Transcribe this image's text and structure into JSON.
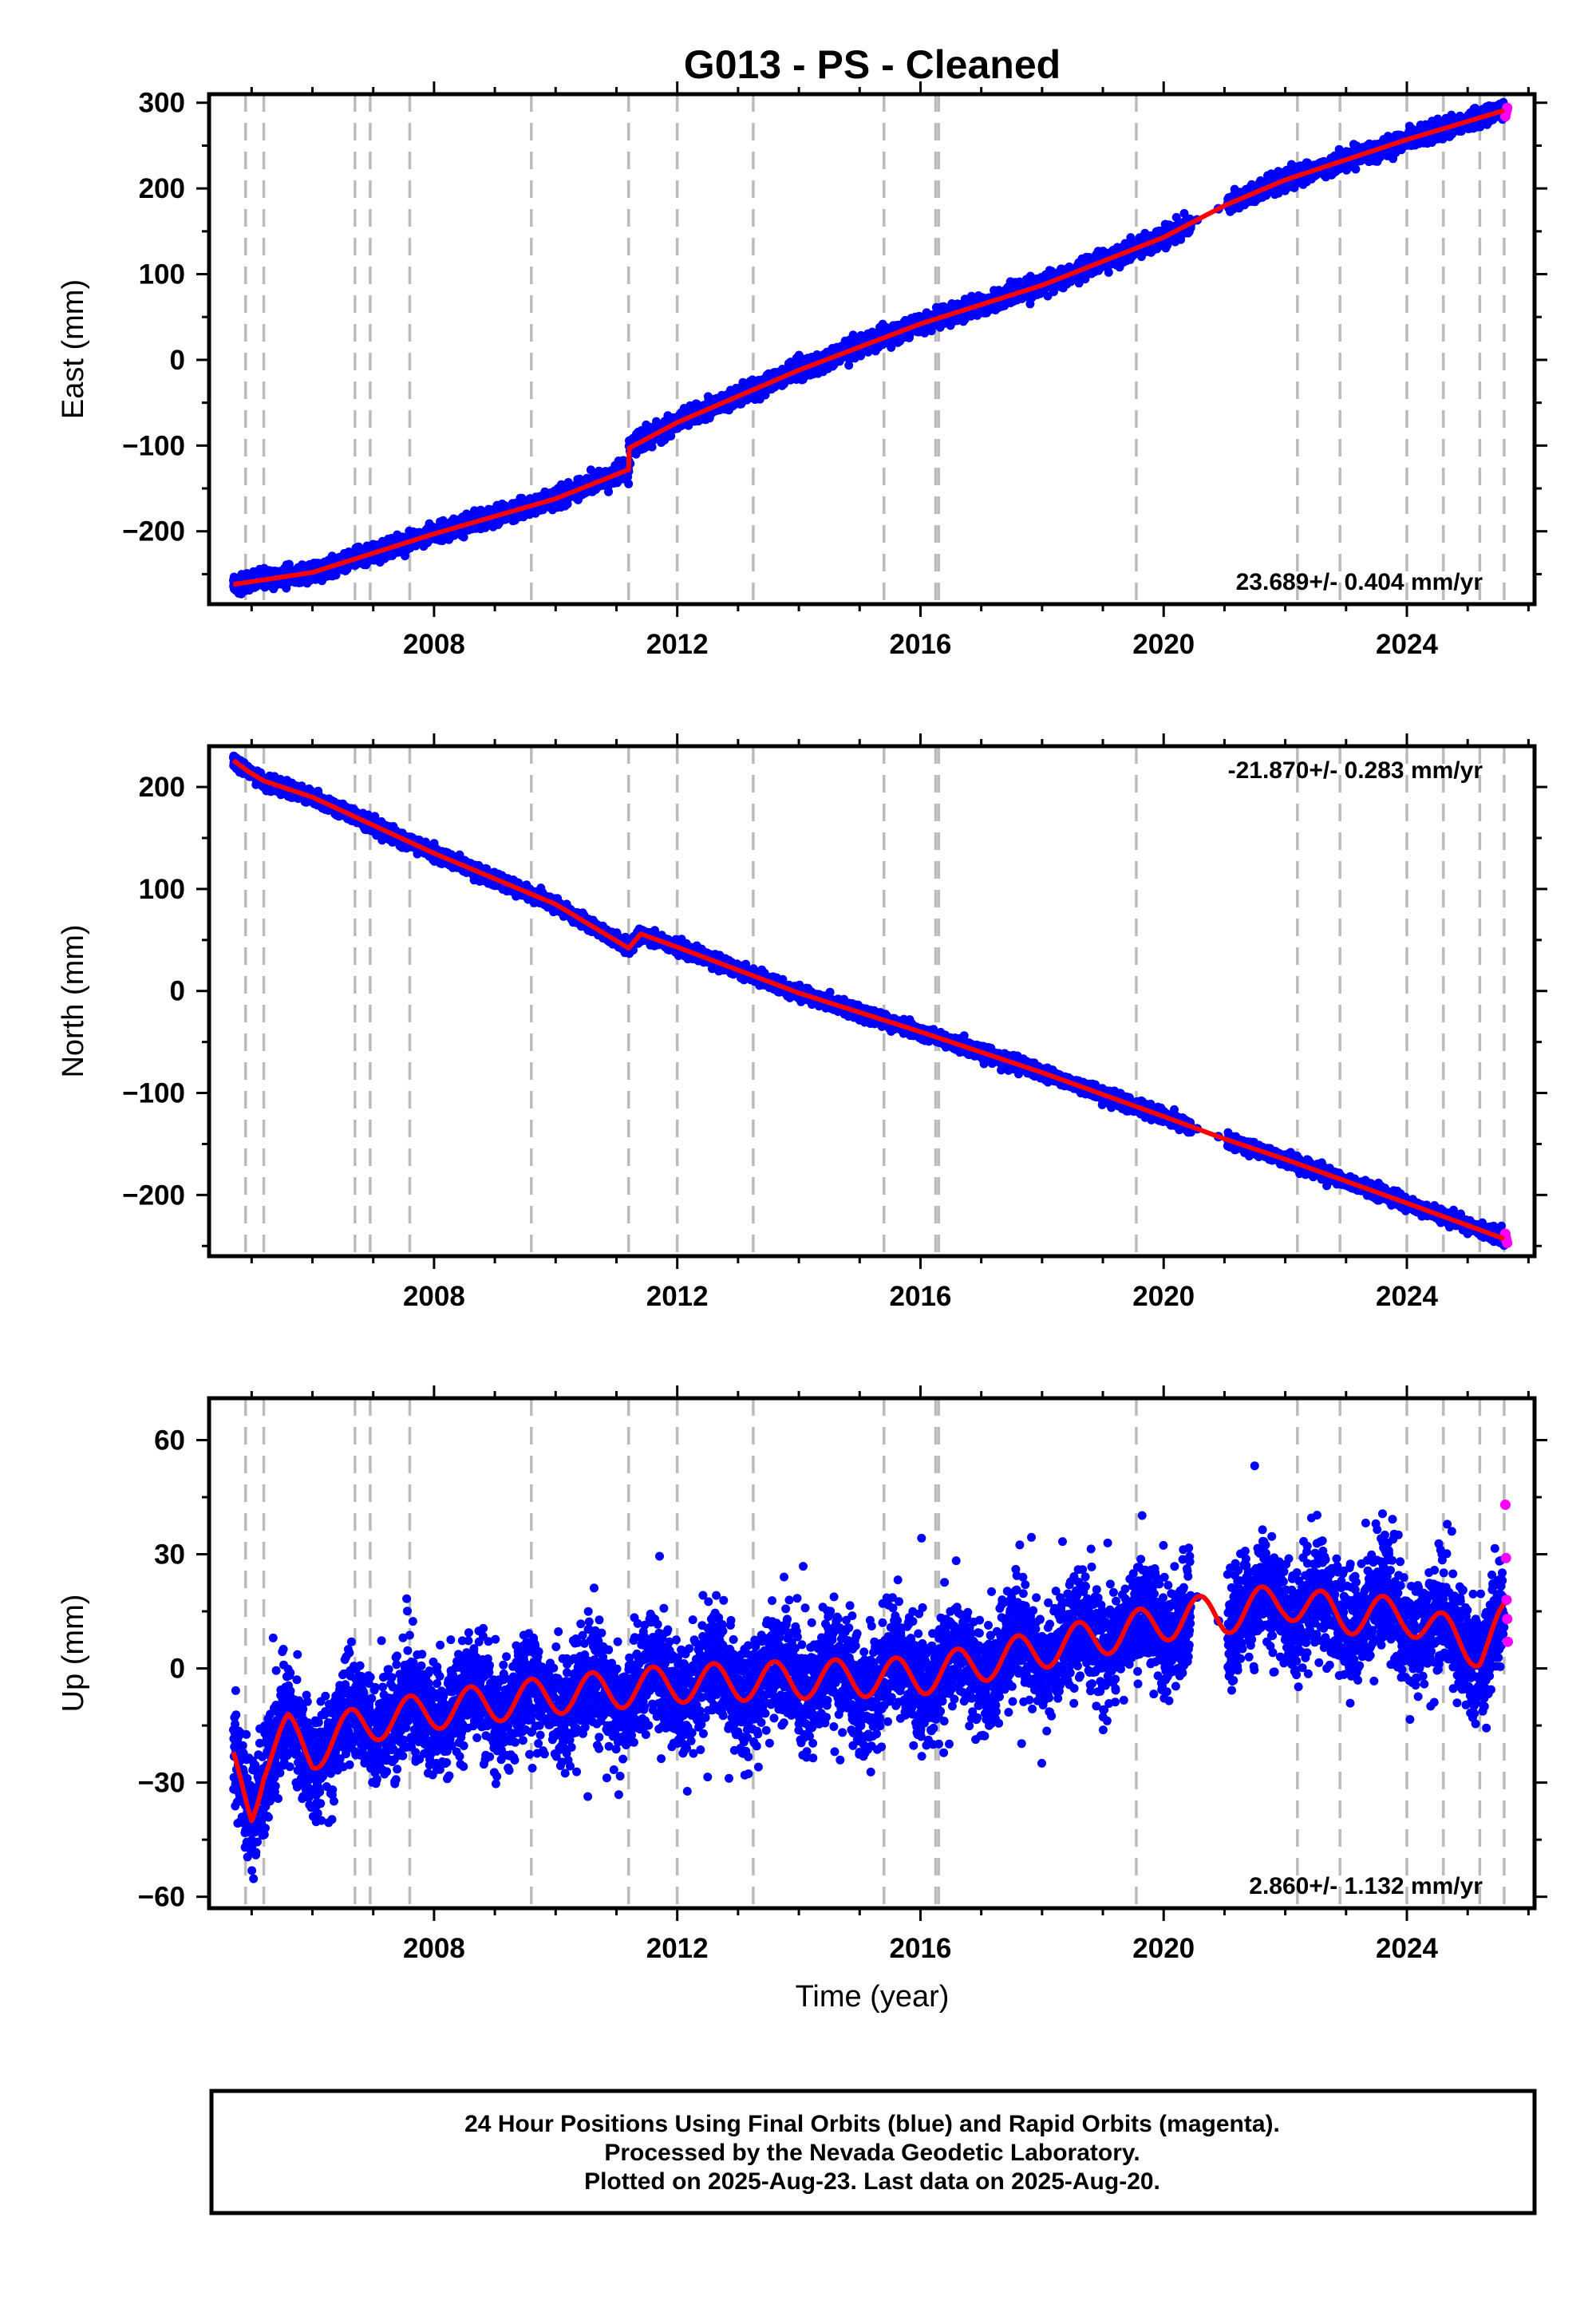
{
  "title": "G013  - PS - Cleaned",
  "xlabel": "Time (year)",
  "footer": {
    "line1": "24 Hour Positions Using Final Orbits (blue) and Rapid Orbits (magenta).",
    "line2": "Processed by the Nevada Geodetic Laboratory.",
    "line3": "Plotted on 2025-Aug-23. Last data on 2025-Aug-20."
  },
  "colors": {
    "final_orbits": "#0000ff",
    "rapid_orbits": "#ff00ff",
    "model_fit": "#ff0000",
    "event_lines": "#bbbbbb"
  },
  "chart_data": [
    {
      "type": "scatter",
      "panel": "east",
      "ylabel": "East (mm)",
      "xlim": [
        2004.3,
        2026.1
      ],
      "ylim": [
        -285,
        310
      ],
      "x_ticks": [
        2008,
        2012,
        2016,
        2020,
        2024
      ],
      "y_ticks": [
        -200,
        -100,
        0,
        100,
        200,
        300
      ],
      "rate_label": "23.689+/- 0.404 mm/yr",
      "rate_position": "bottom-right",
      "event_lines": [
        2004.9,
        2005.2,
        2006.7,
        2006.95,
        2007.6,
        2009.6,
        2011.2,
        2012.0,
        2013.25,
        2015.4,
        2016.25,
        2016.3,
        2019.55,
        2022.2,
        2022.9,
        2024.0,
        2024.6,
        2025.2,
        2025.6
      ],
      "trend_line": {
        "x": [
          2004.7,
          2006,
          2008,
          2010,
          2011.2,
          2011.21,
          2012,
          2014,
          2016,
          2018,
          2020,
          2021,
          2022,
          2024,
          2025.6
        ],
        "y": [
          -262,
          -248,
          -203,
          -162,
          -128,
          -103,
          -73,
          -12,
          42,
          87,
          143,
          180,
          210,
          257,
          291
        ]
      },
      "scatter_noise_mm": 5,
      "data_gap": [
        2020.45,
        2021.05
      ],
      "rapid_orbit_points": {
        "x": [
          2025.62,
          2025.63,
          2025.64,
          2025.65
        ],
        "y": [
          284,
          288,
          291,
          294
        ]
      }
    },
    {
      "type": "scatter",
      "panel": "north",
      "ylabel": "North (mm)",
      "xlim": [
        2004.3,
        2026.1
      ],
      "ylim": [
        -260,
        240
      ],
      "x_ticks": [
        2008,
        2012,
        2016,
        2020,
        2024
      ],
      "y_ticks": [
        -200,
        -100,
        0,
        100,
        200
      ],
      "rate_label": "-21.870+/- 0.283 mm/yr",
      "rate_position": "top-right",
      "event_lines": [
        2004.9,
        2005.2,
        2006.7,
        2006.95,
        2007.6,
        2009.6,
        2011.2,
        2012.0,
        2013.25,
        2015.4,
        2016.25,
        2016.3,
        2019.55,
        2022.2,
        2022.9,
        2024.0,
        2024.6,
        2025.2,
        2025.6
      ],
      "trend_line": {
        "x": [
          2004.7,
          2004.95,
          2005.2,
          2006,
          2008,
          2010,
          2011.2,
          2011.4,
          2012,
          2014,
          2016,
          2018,
          2020,
          2021,
          2022,
          2024,
          2025.6
        ],
        "y": [
          226,
          215,
          206,
          190,
          135,
          85,
          42,
          56,
          43,
          -2,
          -40,
          -80,
          -123,
          -145,
          -165,
          -208,
          -243
        ]
      },
      "scatter_noise_mm": 3,
      "data_gap": [
        2020.45,
        2021.05
      ],
      "rapid_orbit_points": {
        "x": [
          2025.62,
          2025.63,
          2025.64,
          2025.65
        ],
        "y": [
          -238,
          -242,
          -245,
          -247
        ]
      }
    },
    {
      "type": "scatter",
      "panel": "up",
      "ylabel": "Up (mm)",
      "xlim": [
        2004.3,
        2026.1
      ],
      "ylim": [
        -63,
        71
      ],
      "x_ticks": [
        2008,
        2012,
        2016,
        2020,
        2024
      ],
      "y_ticks": [
        -60,
        -30,
        0,
        30,
        60
      ],
      "rate_label": "2.860+/- 1.132 mm/yr",
      "rate_position": "bottom-right",
      "event_lines": [
        2004.9,
        2005.2,
        2006.7,
        2006.95,
        2007.6,
        2009.6,
        2011.2,
        2012.0,
        2013.25,
        2015.4,
        2016.25,
        2016.3,
        2019.55,
        2022.2,
        2022.9,
        2024.0,
        2024.6,
        2025.2,
        2025.6
      ],
      "trend_line": {
        "x": [
          2004.7,
          2005.0,
          2005.2,
          2005.6,
          2006.0,
          2006.7,
          2008,
          2010,
          2012,
          2014,
          2016,
          2018,
          2020,
          2020.4,
          2021,
          2022,
          2022.9,
          2024,
          2025.2,
          2025.6
        ],
        "y": [
          -26,
          -36,
          -25,
          -17,
          -22,
          -15,
          -11,
          -7,
          -4,
          -3,
          -2,
          5,
          12,
          14,
          14,
          18,
          14,
          14,
          5,
          12
        ]
      },
      "seasonal_amplitude_mm": 5,
      "scatter_noise_mm": 7,
      "data_gap": [
        2020.45,
        2021.05
      ],
      "rapid_orbit_points": {
        "x": [
          2025.62,
          2025.63,
          2025.64,
          2025.65,
          2025.66
        ],
        "y": [
          43,
          29,
          18,
          13,
          7
        ]
      }
    }
  ]
}
